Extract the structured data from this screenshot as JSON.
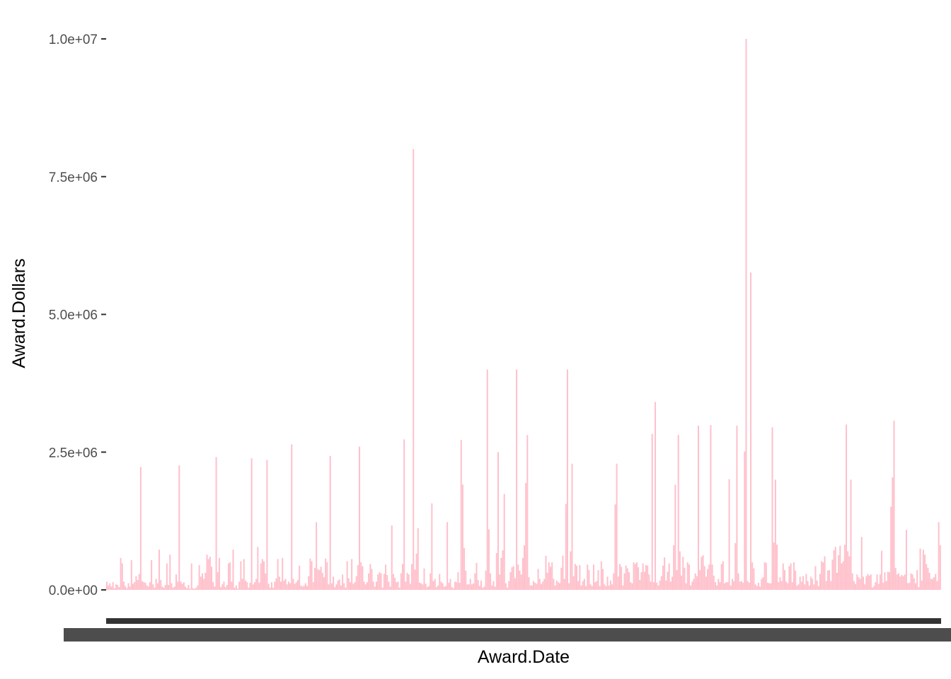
{
  "chart_data": {
    "type": "bar",
    "xlabel": "Award.Date",
    "ylabel": "Award.Dollars",
    "ylim": [
      0,
      10000000
    ],
    "grid": false,
    "legend": "none",
    "bar_color": "#ffc0cb",
    "axis_text_color": "#4d4d4d",
    "x_tick_labels_legible": false,
    "y_ticks": [
      {
        "value": 0,
        "label": "0.0e+00"
      },
      {
        "value": 2500000,
        "label": "2.5e+06"
      },
      {
        "value": 5000000,
        "label": "5.0e+06"
      },
      {
        "value": 7500000,
        "label": "7.5e+06"
      },
      {
        "value": 10000000,
        "label": "1.0e+07"
      }
    ],
    "values": [
      150000,
      80000,
      120000,
      60000,
      140000,
      30000,
      100000,
      90000,
      50000,
      580000,
      480000,
      150000,
      70000,
      30000,
      120000,
      60000,
      540000,
      110000,
      140000,
      250000,
      180000,
      290000,
      2230000,
      160000,
      140000,
      130000,
      80000,
      60000,
      140000,
      540000,
      100000,
      40000,
      200000,
      120000,
      730000,
      180000,
      60000,
      40000,
      90000,
      480000,
      90000,
      640000,
      120000,
      40000,
      60000,
      280000,
      150000,
      2260000,
      150000,
      110000,
      140000,
      60000,
      30000,
      90000,
      20000,
      480000,
      30000,
      20000,
      40000,
      80000,
      450000,
      240000,
      300000,
      200000,
      310000,
      640000,
      560000,
      600000,
      420000,
      140000,
      60000,
      2410000,
      320000,
      580000,
      50000,
      100000,
      150000,
      50000,
      90000,
      480000,
      500000,
      150000,
      730000,
      40000,
      80000,
      20000,
      150000,
      520000,
      200000,
      560000,
      170000,
      140000,
      40000,
      130000,
      2390000,
      100000,
      140000,
      200000,
      780000,
      130000,
      480000,
      560000,
      520000,
      300000,
      2360000,
      110000,
      40000,
      140000,
      40000,
      150000,
      210000,
      560000,
      240000,
      150000,
      580000,
      170000,
      200000,
      100000,
      150000,
      120000,
      2640000,
      200000,
      110000,
      140000,
      180000,
      440000,
      80000,
      60000,
      80000,
      120000,
      70000,
      250000,
      570000,
      520000,
      140000,
      400000,
      1230000,
      380000,
      360000,
      420000,
      310000,
      230000,
      570000,
      500000,
      100000,
      2430000,
      120000,
      240000,
      50000,
      100000,
      170000,
      190000,
      80000,
      280000,
      120000,
      40000,
      520000,
      210000,
      140000,
      560000,
      110000,
      140000,
      250000,
      450000,
      2600000,
      500000,
      430000,
      150000,
      100000,
      140000,
      300000,
      470000,
      380000,
      150000,
      60000,
      150000,
      280000,
      320000,
      300000,
      40000,
      290000,
      460000,
      270000,
      150000,
      60000,
      1170000,
      290000,
      220000,
      140000,
      150000,
      40000,
      300000,
      470000,
      2730000,
      150000,
      310000,
      280000,
      110000,
      470000,
      8000000,
      370000,
      660000,
      1120000,
      130000,
      120000,
      100000,
      390000,
      110000,
      50000,
      70000,
      300000,
      1570000,
      160000,
      200000,
      50000,
      80000,
      290000,
      150000,
      120000,
      60000,
      70000,
      1230000,
      130000,
      200000,
      50000,
      30000,
      150000,
      140000,
      320000,
      130000,
      2720000,
      1910000,
      760000,
      350000,
      100000,
      100000,
      200000,
      100000,
      120000,
      300000,
      490000,
      180000,
      70000,
      170000,
      40000,
      60000,
      350000,
      4000000,
      1100000,
      300000,
      80000,
      160000,
      60000,
      670000,
      2500000,
      280000,
      580000,
      720000,
      1740000,
      120000,
      40000,
      160000,
      320000,
      410000,
      430000,
      210000,
      4000000,
      460000,
      350000,
      280000,
      580000,
      810000,
      1940000,
      2810000,
      230000,
      80000,
      80000,
      160000,
      130000,
      110000,
      380000,
      200000,
      110000,
      150000,
      200000,
      620000,
      310000,
      500000,
      420000,
      500000,
      200000,
      80000,
      170000,
      140000,
      120000,
      400000,
      620000,
      200000,
      1560000,
      4000000,
      120000,
      700000,
      2290000,
      250000,
      470000,
      440000,
      160000,
      450000,
      80000,
      160000,
      200000,
      70000,
      460000,
      360000,
      100000,
      70000,
      460000,
      140000,
      160000,
      360000,
      70000,
      520000,
      380000,
      100000,
      70000,
      240000,
      80000,
      170000,
      100000,
      300000,
      1550000,
      2290000,
      240000,
      470000,
      420000,
      80000,
      300000,
      440000,
      390000,
      320000,
      140000,
      120000,
      500000,
      470000,
      500000,
      410000,
      180000,
      320000,
      480000,
      330000,
      450000,
      440000,
      280000,
      150000,
      2830000,
      140000,
      3410000,
      130000,
      80000,
      170000,
      250000,
      440000,
      590000,
      170000,
      330000,
      480000,
      150000,
      240000,
      810000,
      1910000,
      360000,
      2810000,
      700000,
      260000,
      600000,
      400000,
      120000,
      500000,
      460000,
      80000,
      150000,
      200000,
      300000,
      250000,
      2980000,
      360000,
      600000,
      630000,
      430000,
      240000,
      380000,
      460000,
      2990000,
      460000,
      260000,
      140000,
      80000,
      200000,
      140000,
      470000,
      520000,
      120000,
      140000,
      140000,
      2010000,
      80000,
      200000,
      160000,
      850000,
      2980000,
      300000,
      150000,
      160000,
      130000,
      2510000,
      10000000,
      160000,
      130000,
      5760000,
      500000,
      390000,
      100000,
      70000,
      130000,
      60000,
      200000,
      230000,
      500000,
      490000,
      130000,
      120000,
      120000,
      2950000,
      860000,
      2000000,
      820000,
      140000,
      230000,
      160000,
      480000,
      360000,
      150000,
      120000,
      430000,
      480000,
      140000,
      500000,
      350000,
      80000,
      100000,
      240000,
      150000,
      250000,
      100000,
      290000,
      160000,
      80000,
      240000,
      200000,
      100000,
      430000,
      170000,
      70000,
      290000,
      520000,
      500000,
      610000,
      160000,
      350000,
      360000,
      160000,
      550000,
      720000,
      780000,
      310000,
      630000,
      800000,
      480000,
      520000,
      820000,
      3000000,
      700000,
      610000,
      2000000,
      300000,
      160000,
      110000,
      280000,
      230000,
      200000,
      960000,
      240000,
      100000,
      250000,
      290000,
      260000,
      280000,
      40000,
      70000,
      140000,
      280000,
      110000,
      280000,
      710000,
      130000,
      320000,
      160000,
      330000,
      320000,
      1510000,
      2040000,
      3070000,
      400000,
      280000,
      300000,
      240000,
      270000,
      250000,
      280000,
      1090000,
      120000,
      130000,
      300000,
      280000,
      210000,
      120000,
      360000,
      50000,
      750000,
      170000,
      730000,
      640000,
      470000,
      400000,
      310000,
      200000,
      200000,
      230000,
      290000,
      160000,
      1230000,
      810000
    ]
  }
}
